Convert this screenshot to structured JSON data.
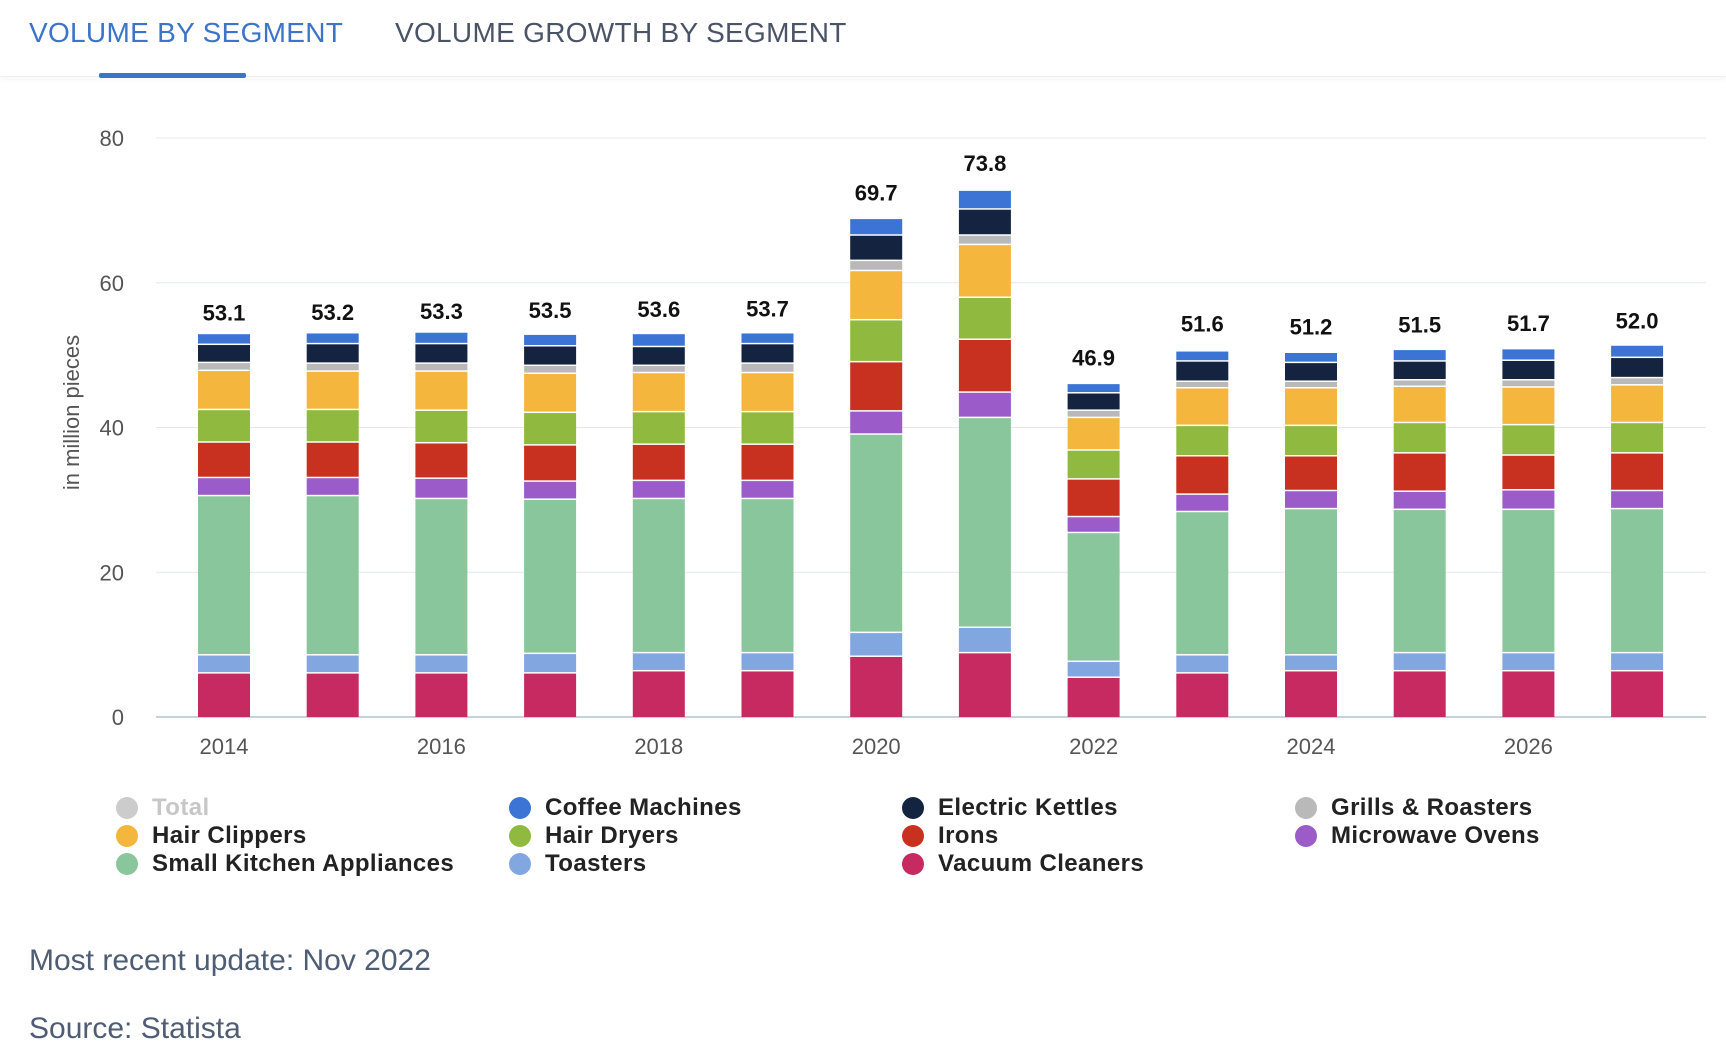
{
  "tabs": [
    {
      "label": "VOLUME BY SEGMENT",
      "active": true
    },
    {
      "label": "VOLUME GROWTH BY SEGMENT",
      "active": false
    }
  ],
  "footer": {
    "update": "Most recent update: Nov 2022",
    "source": "Source: Statista"
  },
  "legend": [
    {
      "label": "Total",
      "color": "#cccccc",
      "muted": true
    },
    {
      "label": "Coffee Machines",
      "color": "#3b74d4"
    },
    {
      "label": "Electric Kettles",
      "color": "#14233f"
    },
    {
      "label": "Grills & Roasters",
      "color": "#b9b9b9"
    },
    {
      "label": "Hair Clippers",
      "color": "#f4b63d"
    },
    {
      "label": "Hair Dryers",
      "color": "#8fba3f"
    },
    {
      "label": "Irons",
      "color": "#c8301f"
    },
    {
      "label": "Microwave Ovens",
      "color": "#9b5bc9"
    },
    {
      "label": "Small Kitchen Appliances",
      "color": "#8ac69b"
    },
    {
      "label": "Toasters",
      "color": "#82a7e0"
    },
    {
      "label": "Vacuum Cleaners",
      "color": "#c62a61"
    }
  ],
  "chart_data": {
    "type": "bar",
    "stacked": true,
    "ylabel": "in million pieces",
    "ylim": [
      0,
      80
    ],
    "yticks": [
      0,
      20,
      40,
      60,
      80
    ],
    "grid": true,
    "legend_position": "bottom",
    "categories": [
      "2014",
      "2015",
      "2016",
      "2017",
      "2018",
      "2019",
      "2020",
      "2021",
      "2022",
      "2023",
      "2024",
      "2025",
      "2026",
      "2027"
    ],
    "xtick_labels": [
      "2014",
      "",
      "2016",
      "",
      "2018",
      "",
      "2020",
      "",
      "2022",
      "",
      "2024",
      "",
      "2026",
      ""
    ],
    "totals": [
      53.1,
      53.2,
      53.3,
      53.5,
      53.6,
      53.7,
      69.7,
      73.8,
      46.9,
      51.6,
      51.2,
      51.5,
      51.7,
      52.0
    ],
    "total_labels": [
      "53.1",
      "53.2",
      "53.3",
      "53.5",
      "53.6",
      "53.7",
      "69.7",
      "73.8",
      "46.9",
      "51.6",
      "51.2",
      "51.5",
      "51.7",
      "52.0"
    ],
    "series": [
      {
        "name": "Vacuum Cleaners",
        "color": "#c62a61",
        "values": [
          6.2,
          6.2,
          6.2,
          6.2,
          6.5,
          6.5,
          8.5,
          9.0,
          5.6,
          6.2,
          6.5,
          6.5,
          6.5,
          6.5
        ]
      },
      {
        "name": "Toasters",
        "color": "#82a7e0",
        "values": [
          2.5,
          2.5,
          2.5,
          2.7,
          2.5,
          2.5,
          3.3,
          3.5,
          2.2,
          2.5,
          2.2,
          2.5,
          2.5,
          2.5
        ]
      },
      {
        "name": "Small Kitchen Appliances",
        "color": "#8ac69b",
        "values": [
          22.0,
          22.0,
          21.6,
          21.3,
          21.3,
          21.3,
          27.4,
          29.0,
          17.8,
          19.8,
          20.2,
          19.8,
          19.8,
          19.9
        ]
      },
      {
        "name": "Microwave Ovens",
        "color": "#9b5bc9",
        "values": [
          2.5,
          2.5,
          2.8,
          2.5,
          2.5,
          2.5,
          3.2,
          3.5,
          2.2,
          2.4,
          2.5,
          2.5,
          2.7,
          2.5
        ]
      },
      {
        "name": "Irons",
        "color": "#c8301f",
        "values": [
          4.9,
          4.9,
          4.9,
          5.0,
          5.0,
          5.0,
          6.8,
          7.3,
          5.2,
          5.3,
          4.8,
          5.3,
          4.8,
          5.2
        ]
      },
      {
        "name": "Hair Dryers",
        "color": "#8fba3f",
        "values": [
          4.5,
          4.5,
          4.5,
          4.5,
          4.5,
          4.5,
          5.8,
          5.8,
          4.0,
          4.2,
          4.2,
          4.2,
          4.2,
          4.2
        ]
      },
      {
        "name": "Hair Clippers",
        "color": "#f4b63d",
        "values": [
          5.4,
          5.3,
          5.4,
          5.4,
          5.4,
          5.4,
          6.8,
          7.3,
          4.5,
          5.2,
          5.2,
          5.0,
          5.2,
          5.2
        ]
      },
      {
        "name": "Grills & Roasters",
        "color": "#b9b9b9",
        "values": [
          1.1,
          1.1,
          1.1,
          1.1,
          1.0,
          1.3,
          1.4,
          1.3,
          1.0,
          0.9,
          0.9,
          0.9,
          1.0,
          1.0
        ]
      },
      {
        "name": "Electric Kettles",
        "color": "#14233f",
        "values": [
          2.5,
          2.7,
          2.7,
          2.7,
          2.6,
          2.7,
          3.5,
          3.6,
          2.4,
          2.8,
          2.6,
          2.6,
          2.7,
          2.8
        ]
      },
      {
        "name": "Coffee Machines",
        "color": "#3b74d4",
        "values": [
          1.5,
          1.5,
          1.6,
          1.6,
          1.8,
          1.5,
          2.3,
          2.6,
          1.3,
          1.4,
          1.4,
          1.6,
          1.6,
          1.7
        ]
      }
    ]
  }
}
